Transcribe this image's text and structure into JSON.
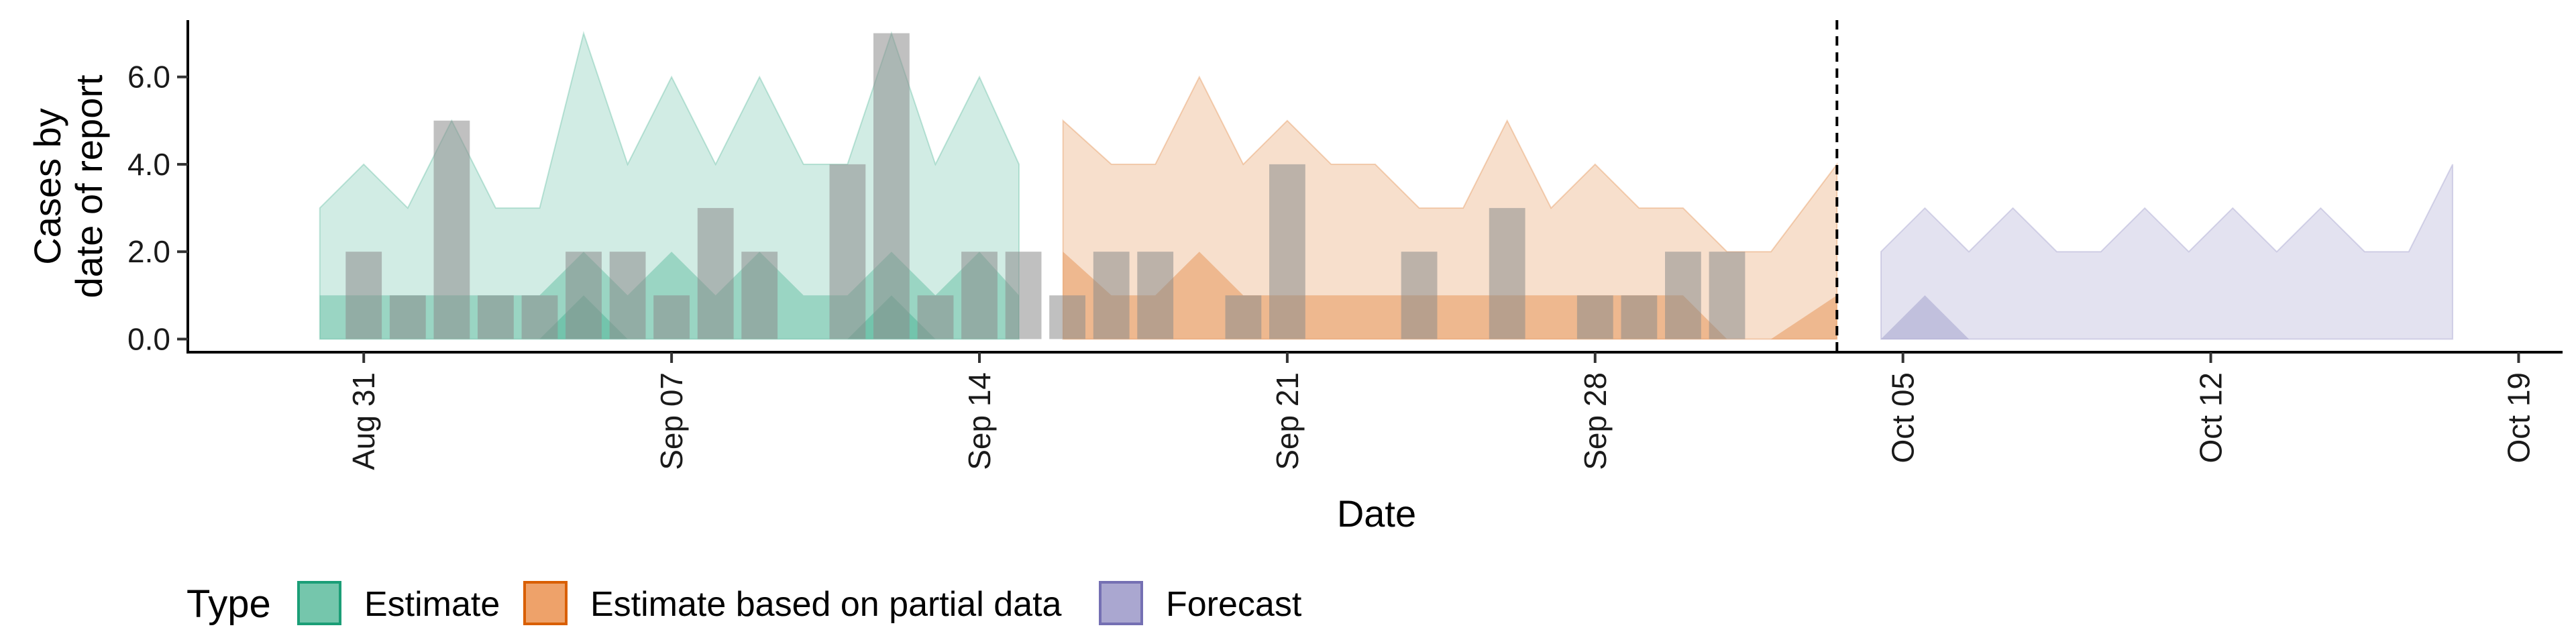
{
  "chart_data": {
    "type": "area",
    "title": "",
    "xlabel": "Date",
    "ylabel_lines": [
      "Cases by",
      "date of report"
    ],
    "ylim": [
      -0.3,
      7.3
    ],
    "y_ticks": [
      0,
      2,
      4,
      6
    ],
    "y_tick_labels": [
      "0.0",
      "2.0",
      "4.0",
      "6.0"
    ],
    "x_domain_days": [
      -4,
      50
    ],
    "x_ticks": [
      0,
      7,
      14,
      21,
      28,
      35,
      42,
      49
    ],
    "x_tick_labels": [
      "Aug 31",
      "Sep 07",
      "Sep 14",
      "Sep 21",
      "Sep 28",
      "Oct 05",
      "Oct 12",
      "Oct 19"
    ],
    "x_note": "days counted from Aug 31",
    "vline_day": 33.5,
    "legend": {
      "title": "Type",
      "entries": [
        {
          "label": "Estimate",
          "fill": "#75c6ac",
          "stroke": "#1b9e77"
        },
        {
          "label": "Estimate based on partial data",
          "fill": "#eea26a",
          "stroke": "#d95f02"
        },
        {
          "label": "Forecast",
          "fill": "#aaa7d0",
          "stroke": "#7570b3"
        }
      ]
    },
    "observed_cases": {
      "days": [
        0,
        1,
        2,
        3,
        4,
        5,
        6,
        7,
        8,
        9,
        10,
        11,
        12,
        13,
        14,
        15,
        16,
        17,
        18,
        19,
        20,
        21,
        22,
        23,
        24,
        25,
        26,
        27,
        28,
        29,
        30,
        31,
        32
      ],
      "values": [
        2,
        1,
        5,
        1,
        1,
        2,
        2,
        1,
        3,
        2,
        0,
        4,
        7,
        1,
        2,
        2,
        1,
        2,
        2,
        0,
        1,
        4,
        0,
        0,
        2,
        0,
        3,
        0,
        1,
        1,
        2,
        2,
        0
      ]
    },
    "series": [
      {
        "name": "Estimate",
        "color": "#1b9e77",
        "days": [
          -1,
          0,
          1,
          2,
          3,
          4,
          5,
          6,
          7,
          8,
          9,
          10,
          11,
          12,
          13,
          14,
          14.9
        ],
        "outer_upper": [
          3,
          4,
          3,
          5,
          3,
          3,
          7,
          4,
          6,
          4,
          6,
          4,
          4,
          7,
          4,
          6,
          4
        ],
        "inner_upper": [
          1,
          1,
          1,
          1,
          1,
          1,
          2,
          1,
          2,
          1,
          2,
          1,
          1,
          2,
          1,
          2,
          1
        ],
        "core_upper": [
          0,
          0,
          0,
          0,
          0,
          0,
          1,
          0,
          0,
          0,
          0,
          0,
          0,
          1,
          0,
          0,
          0
        ]
      },
      {
        "name": "Estimate based on partial data",
        "color": "#d95f02",
        "days": [
          15.9,
          17,
          18,
          19,
          20,
          21,
          22,
          23,
          24,
          25,
          26,
          27,
          28,
          29,
          30,
          31,
          32,
          33.5
        ],
        "outer_upper": [
          5,
          4,
          4,
          6,
          4,
          5,
          4,
          4,
          3,
          3,
          5,
          3,
          4,
          3,
          3,
          2,
          2,
          4
        ],
        "inner_upper": [
          2,
          1,
          1,
          2,
          1,
          1,
          1,
          1,
          1,
          1,
          1,
          1,
          1,
          1,
          1,
          0,
          0,
          1
        ],
        "core_upper": [
          0,
          0,
          0,
          0,
          0,
          0,
          0,
          0,
          0,
          0,
          0,
          0,
          0,
          0,
          0,
          0,
          0,
          0
        ]
      },
      {
        "name": "Forecast",
        "color": "#7570b3",
        "days": [
          34.5,
          35.5,
          36.5,
          37.5,
          38.5,
          39.5,
          40.5,
          41.5,
          42.5,
          43.5,
          44.5,
          45.5,
          46.5,
          47.5
        ],
        "outer_upper": [
          2,
          3,
          2,
          3,
          2,
          2,
          3,
          2,
          3,
          2,
          3,
          2,
          2,
          4
        ],
        "inner_upper": [
          0,
          1,
          0,
          0,
          0,
          0,
          0,
          0,
          0,
          0,
          0,
          0,
          0,
          0
        ],
        "core_upper": [
          0,
          0,
          0,
          0,
          0,
          0,
          0,
          0,
          0,
          0,
          0,
          0,
          0,
          0
        ]
      }
    ]
  }
}
